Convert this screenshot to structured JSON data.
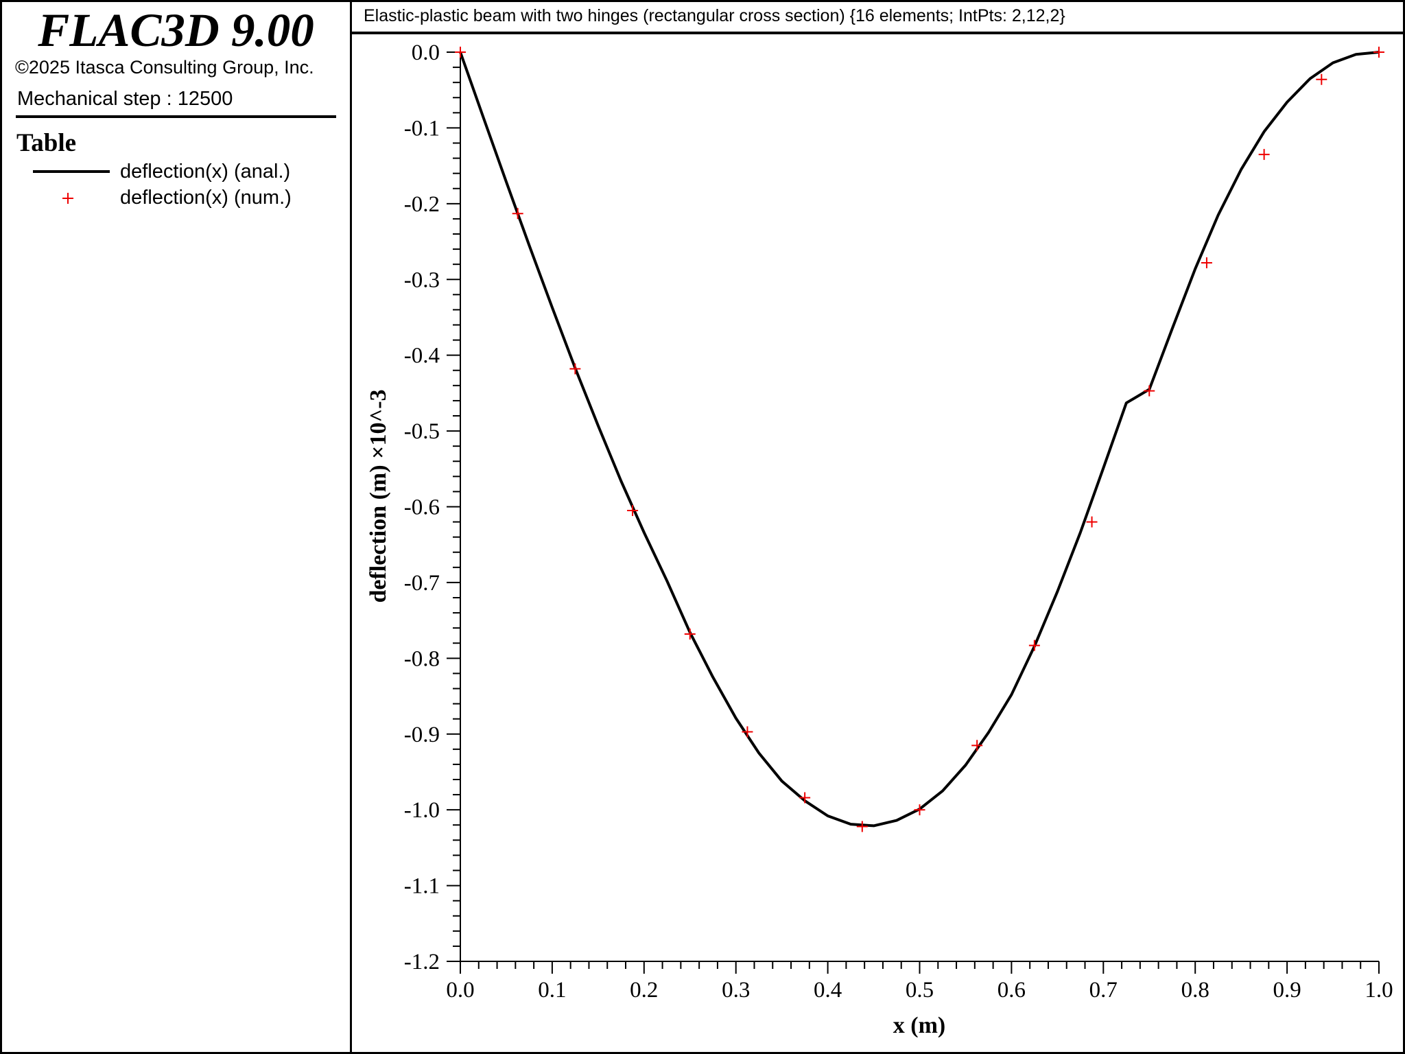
{
  "app": {
    "title": "FLAC3D 9.00",
    "copyright": "©2025 Itasca Consulting Group, Inc.",
    "step_label": "Mechanical step : 12500"
  },
  "legend": {
    "title": "Table",
    "items": [
      {
        "label": "deflection(x) (anal.)",
        "style": "line",
        "color": "#000000"
      },
      {
        "label": "deflection(x) (num.)",
        "style": "plus",
        "color": "#ee0000"
      }
    ]
  },
  "chart_data": {
    "type": "line",
    "title": "Elastic-plastic beam with two hinges (rectangular cross section) {16 elements; IntPts: 2,12,2}",
    "xlabel": "x (m)",
    "ylabel": "deflection (m) ×10^-3",
    "xlim": [
      0.0,
      1.0
    ],
    "ylim": [
      -1.2,
      0.0
    ],
    "x_ticks": [
      "0.0",
      "0.1",
      "0.2",
      "0.3",
      "0.4",
      "0.5",
      "0.6",
      "0.7",
      "0.8",
      "0.9",
      "1.0"
    ],
    "y_ticks": [
      "0.0",
      "-0.1",
      "-0.2",
      "-0.3",
      "-0.4",
      "-0.5",
      "-0.6",
      "-0.7",
      "-0.8",
      "-0.9",
      "-1.0",
      "-1.1",
      "-1.2"
    ],
    "grid": false,
    "legend_position": "left panel",
    "series": [
      {
        "name": "deflection(x) (anal.)",
        "style": "line",
        "color": "#000000",
        "x": [
          0.0,
          0.025,
          0.05,
          0.075,
          0.1,
          0.125,
          0.15,
          0.175,
          0.2,
          0.225,
          0.25,
          0.275,
          0.3,
          0.325,
          0.35,
          0.375,
          0.4,
          0.425,
          0.45,
          0.475,
          0.5,
          0.525,
          0.55,
          0.575,
          0.6,
          0.625,
          0.65,
          0.675,
          0.7,
          0.725,
          0.75,
          0.775,
          0.8,
          0.825,
          0.85,
          0.875,
          0.9,
          0.925,
          0.95,
          0.975,
          1.0
        ],
        "y": [
          0.0,
          -0.086,
          -0.171,
          -0.255,
          -0.337,
          -0.417,
          -0.493,
          -0.566,
          -0.634,
          -0.698,
          -0.766,
          -0.825,
          -0.879,
          -0.925,
          -0.962,
          -0.988,
          -1.008,
          -1.019,
          -1.021,
          -1.014,
          -0.999,
          -0.975,
          -0.941,
          -0.898,
          -0.848,
          -0.784,
          -0.712,
          -0.634,
          -0.549,
          -0.463,
          -0.445,
          -0.365,
          -0.286,
          -0.215,
          -0.155,
          -0.105,
          -0.066,
          -0.035,
          -0.014,
          -0.003,
          0.0
        ]
      },
      {
        "name": "deflection(x) (num.)",
        "style": "plus",
        "color": "#ee0000",
        "x": [
          0.0,
          0.0625,
          0.125,
          0.1875,
          0.25,
          0.3125,
          0.375,
          0.4375,
          0.5,
          0.5625,
          0.625,
          0.6875,
          0.75,
          0.8125,
          0.875,
          0.9375,
          1.0
        ],
        "y": [
          0.0,
          -0.213,
          -0.418,
          -0.605,
          -0.768,
          -0.897,
          -0.984,
          -1.022,
          -1.0,
          -0.915,
          -0.783,
          -0.62,
          -0.447,
          -0.278,
          -0.135,
          -0.036,
          0.0
        ]
      }
    ]
  }
}
